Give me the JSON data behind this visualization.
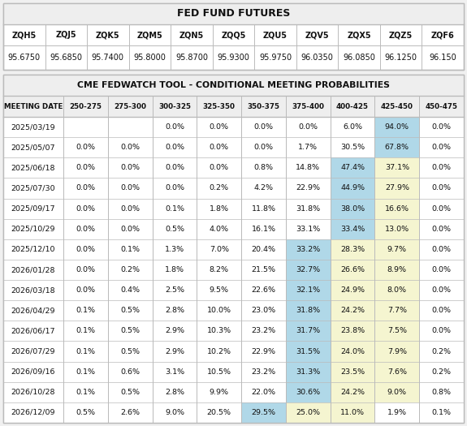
{
  "title1": "FED FUND FUTURES",
  "futures_headers": [
    "ZQH5",
    "ZQJ5",
    "ZQK5",
    "ZQM5",
    "ZQN5",
    "ZQQ5",
    "ZQU5",
    "ZQV5",
    "ZQX5",
    "ZQZ5",
    "ZQF6"
  ],
  "futures_values": [
    "95.6750",
    "95.6850",
    "95.7400",
    "95.8000",
    "95.8700",
    "95.9300",
    "95.9750",
    "96.0350",
    "96.0850",
    "96.1250",
    "96.150"
  ],
  "title2": "CME FEDWATCH TOOL - CONDITIONAL MEETING PROBABILITIES",
  "col_headers": [
    "MEETING DATE",
    "250-275",
    "275-300",
    "300-325",
    "325-350",
    "350-375",
    "375-400",
    "400-425",
    "425-450",
    "450-475"
  ],
  "rows": [
    [
      "2025/03/19",
      "",
      "",
      "0.0%",
      "0.0%",
      "0.0%",
      "0.0%",
      "6.0%",
      "94.0%",
      "0.0%"
    ],
    [
      "2025/05/07",
      "0.0%",
      "0.0%",
      "0.0%",
      "0.0%",
      "0.0%",
      "1.7%",
      "30.5%",
      "67.8%",
      "0.0%"
    ],
    [
      "2025/06/18",
      "0.0%",
      "0.0%",
      "0.0%",
      "0.0%",
      "0.8%",
      "14.8%",
      "47.4%",
      "37.1%",
      "0.0%"
    ],
    [
      "2025/07/30",
      "0.0%",
      "0.0%",
      "0.0%",
      "0.2%",
      "4.2%",
      "22.9%",
      "44.9%",
      "27.9%",
      "0.0%"
    ],
    [
      "2025/09/17",
      "0.0%",
      "0.0%",
      "0.1%",
      "1.8%",
      "11.8%",
      "31.8%",
      "38.0%",
      "16.6%",
      "0.0%"
    ],
    [
      "2025/10/29",
      "0.0%",
      "0.0%",
      "0.5%",
      "4.0%",
      "16.1%",
      "33.1%",
      "33.4%",
      "13.0%",
      "0.0%"
    ],
    [
      "2025/12/10",
      "0.0%",
      "0.1%",
      "1.3%",
      "7.0%",
      "20.4%",
      "33.2%",
      "28.3%",
      "9.7%",
      "0.0%"
    ],
    [
      "2026/01/28",
      "0.0%",
      "0.2%",
      "1.8%",
      "8.2%",
      "21.5%",
      "32.7%",
      "26.6%",
      "8.9%",
      "0.0%"
    ],
    [
      "2026/03/18",
      "0.0%",
      "0.4%",
      "2.5%",
      "9.5%",
      "22.6%",
      "32.1%",
      "24.9%",
      "8.0%",
      "0.0%"
    ],
    [
      "2026/04/29",
      "0.1%",
      "0.5%",
      "2.8%",
      "10.0%",
      "23.0%",
      "31.8%",
      "24.2%",
      "7.7%",
      "0.0%"
    ],
    [
      "2026/06/17",
      "0.1%",
      "0.5%",
      "2.9%",
      "10.3%",
      "23.2%",
      "31.7%",
      "23.8%",
      "7.5%",
      "0.0%"
    ],
    [
      "2026/07/29",
      "0.1%",
      "0.5%",
      "2.9%",
      "10.2%",
      "22.9%",
      "31.5%",
      "24.0%",
      "7.9%",
      "0.2%"
    ],
    [
      "2026/09/16",
      "0.1%",
      "0.6%",
      "3.1%",
      "10.5%",
      "23.2%",
      "31.3%",
      "23.5%",
      "7.6%",
      "0.2%"
    ],
    [
      "2026/10/28",
      "0.1%",
      "0.5%",
      "2.8%",
      "9.9%",
      "22.0%",
      "30.6%",
      "24.2%",
      "9.0%",
      "0.8%"
    ],
    [
      "2026/12/09",
      "0.5%",
      "2.6%",
      "9.0%",
      "20.5%",
      "29.5%",
      "25.0%",
      "11.0%",
      "1.9%",
      "0.1%"
    ]
  ],
  "cell_highlights": [
    [
      null,
      null,
      null,
      null,
      null,
      null,
      null,
      null,
      "blue",
      null
    ],
    [
      null,
      null,
      null,
      null,
      null,
      null,
      null,
      null,
      "blue",
      null
    ],
    [
      null,
      null,
      null,
      null,
      null,
      null,
      null,
      "blue",
      "yellow",
      null
    ],
    [
      null,
      null,
      null,
      null,
      null,
      null,
      null,
      "blue",
      "yellow",
      null
    ],
    [
      null,
      null,
      null,
      null,
      null,
      null,
      null,
      "blue",
      "yellow",
      null
    ],
    [
      null,
      null,
      null,
      null,
      null,
      null,
      null,
      "blue",
      "yellow",
      null
    ],
    [
      null,
      null,
      null,
      null,
      null,
      null,
      "blue",
      "yellow",
      "yellow",
      null
    ],
    [
      null,
      null,
      null,
      null,
      null,
      null,
      "blue",
      "yellow",
      "yellow",
      null
    ],
    [
      null,
      null,
      null,
      null,
      null,
      null,
      "blue",
      "yellow",
      "yellow",
      null
    ],
    [
      null,
      null,
      null,
      null,
      null,
      null,
      "blue",
      "yellow",
      "yellow",
      null
    ],
    [
      null,
      null,
      null,
      null,
      null,
      null,
      "blue",
      "yellow",
      "yellow",
      null
    ],
    [
      null,
      null,
      null,
      null,
      null,
      null,
      "blue",
      "yellow",
      "yellow",
      null
    ],
    [
      null,
      null,
      null,
      null,
      null,
      null,
      "blue",
      "yellow",
      "yellow",
      null
    ],
    [
      null,
      null,
      null,
      null,
      null,
      null,
      "blue",
      "yellow",
      "yellow",
      null
    ],
    [
      null,
      null,
      null,
      null,
      null,
      "blue",
      "yellow",
      "yellow",
      null,
      null
    ]
  ],
  "blue_color": "#b0d8e8",
  "yellow_color": "#f5f5d0",
  "bg_color": "#f0f0f0",
  "cell_bg": "#ffffff",
  "border_color": "#bbbbbb",
  "text_color": "#111111",
  "header_bg": "#eeeeee"
}
